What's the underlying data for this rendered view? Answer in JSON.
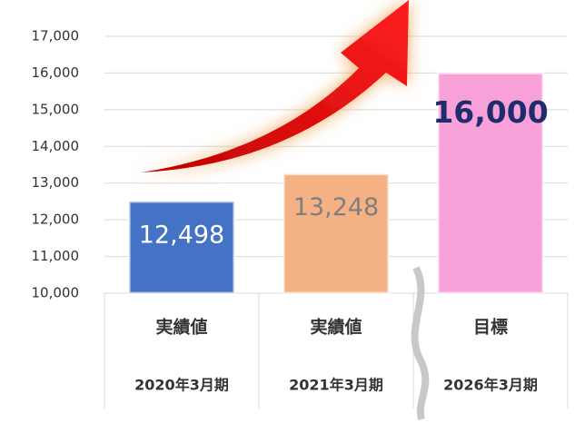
{
  "chart_data": {
    "type": "bar",
    "categories": [
      "実績値",
      "実績値",
      "目標"
    ],
    "periods": [
      "2020年3月期",
      "2021年3月期",
      "2026年3月期"
    ],
    "values": [
      12498,
      13248,
      16000
    ],
    "value_labels": [
      "12,498",
      "13,248",
      "16,000"
    ],
    "colors": [
      "#4472c4",
      "#f4b183",
      "#f7a1d8"
    ],
    "label_colors": [
      "#ffffff",
      "#7f7f7f",
      "#1f2d6e"
    ],
    "ylim": [
      10000,
      17000
    ],
    "yticks": [
      {
        "value": 10000,
        "label": "10,000"
      },
      {
        "value": 11000,
        "label": "11,000"
      },
      {
        "value": 12000,
        "label": "12,000"
      },
      {
        "value": 13000,
        "label": "13,000"
      },
      {
        "value": 14000,
        "label": "14,000"
      },
      {
        "value": 15000,
        "label": "15,000"
      },
      {
        "value": 16000,
        "label": "16,000"
      },
      {
        "value": 17000,
        "label": "17,000"
      }
    ],
    "grid": true
  }
}
